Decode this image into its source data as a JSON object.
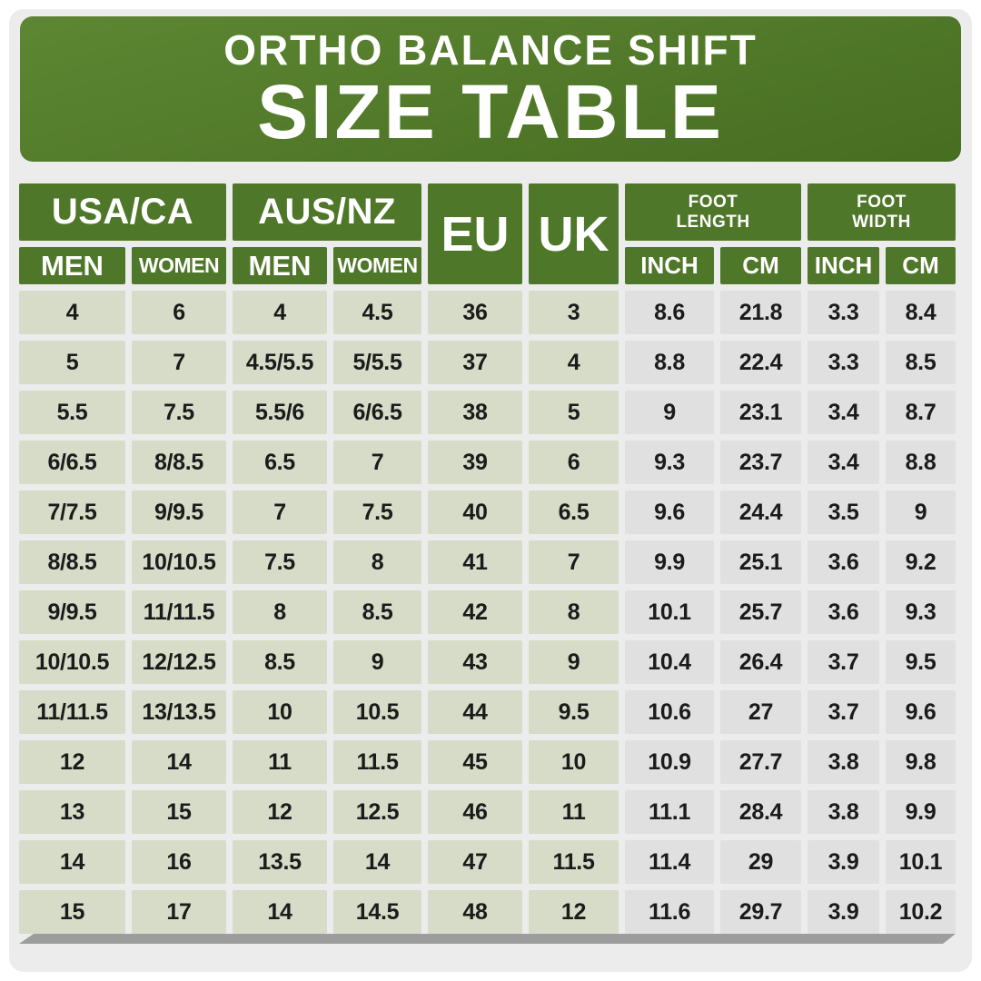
{
  "banner": {
    "line1": "ORTHO BALANCE SHIFT",
    "line2": "SIZE TABLE"
  },
  "header": {
    "usa_ca": "USA/CA",
    "aus_nz": "AUS/NZ",
    "eu": "EU",
    "uk": "UK",
    "foot_length": "FOOT LENGTH",
    "foot_width": "FOOT WIDTH",
    "men": "MEN",
    "women": "WOMEN",
    "inch": "INCH",
    "cm": "CM"
  },
  "colors": {
    "banner_green_top": "#5d8733",
    "banner_green_bottom": "#476d21",
    "header_green": "#4f7729",
    "cell_sage": "#d6dcc7",
    "cell_gray": "#e0e0e0",
    "page_bg": "#ececec",
    "frame_white": "#ffffff",
    "shadow_gray": "#9d9d9d",
    "text_dark": "#1b1b1b",
    "text_white": "#ffffff"
  },
  "chart_data": {
    "type": "table",
    "title": "ORTHO BALANCE SHIFT SIZE TABLE",
    "column_groups": [
      {
        "label": "USA/CA",
        "columns": [
          "MEN",
          "WOMEN"
        ]
      },
      {
        "label": "AUS/NZ",
        "columns": [
          "MEN",
          "WOMEN"
        ]
      },
      {
        "label": "EU",
        "columns": [
          "EU"
        ]
      },
      {
        "label": "UK",
        "columns": [
          "UK"
        ]
      },
      {
        "label": "FOOT LENGTH",
        "columns": [
          "INCH",
          "CM"
        ]
      },
      {
        "label": "FOOT WIDTH",
        "columns": [
          "INCH",
          "CM"
        ]
      }
    ],
    "columns": [
      "USA/CA MEN",
      "USA/CA WOMEN",
      "AUS/NZ MEN",
      "AUS/NZ WOMEN",
      "EU",
      "UK",
      "FOOT LENGTH INCH",
      "FOOT LENGTH CM",
      "FOOT WIDTH INCH",
      "FOOT WIDTH CM"
    ],
    "rows": [
      [
        "4",
        "6",
        "4",
        "4.5",
        "36",
        "3",
        "8.6",
        "21.8",
        "3.3",
        "8.4"
      ],
      [
        "5",
        "7",
        "4.5/5.5",
        "5/5.5",
        "37",
        "4",
        "8.8",
        "22.4",
        "3.3",
        "8.5"
      ],
      [
        "5.5",
        "7.5",
        "5.5/6",
        "6/6.5",
        "38",
        "5",
        "9",
        "23.1",
        "3.4",
        "8.7"
      ],
      [
        "6/6.5",
        "8/8.5",
        "6.5",
        "7",
        "39",
        "6",
        "9.3",
        "23.7",
        "3.4",
        "8.8"
      ],
      [
        "7/7.5",
        "9/9.5",
        "7",
        "7.5",
        "40",
        "6.5",
        "9.6",
        "24.4",
        "3.5",
        "9"
      ],
      [
        "8/8.5",
        "10/10.5",
        "7.5",
        "8",
        "41",
        "7",
        "9.9",
        "25.1",
        "3.6",
        "9.2"
      ],
      [
        "9/9.5",
        "11/11.5",
        "8",
        "8.5",
        "42",
        "8",
        "10.1",
        "25.7",
        "3.6",
        "9.3"
      ],
      [
        "10/10.5",
        "12/12.5",
        "8.5",
        "9",
        "43",
        "9",
        "10.4",
        "26.4",
        "3.7",
        "9.5"
      ],
      [
        "11/11.5",
        "13/13.5",
        "10",
        "10.5",
        "44",
        "9.5",
        "10.6",
        "27",
        "3.7",
        "9.6"
      ],
      [
        "12",
        "14",
        "11",
        "11.5",
        "45",
        "10",
        "10.9",
        "27.7",
        "3.8",
        "9.8"
      ],
      [
        "13",
        "15",
        "12",
        "12.5",
        "46",
        "11",
        "11.1",
        "28.4",
        "3.8",
        "9.9"
      ],
      [
        "14",
        "16",
        "13.5",
        "14",
        "47",
        "11.5",
        "11.4",
        "29",
        "3.9",
        "10.1"
      ],
      [
        "15",
        "17",
        "14",
        "14.5",
        "48",
        "12",
        "11.6",
        "29.7",
        "3.9",
        "10.2"
      ]
    ]
  }
}
